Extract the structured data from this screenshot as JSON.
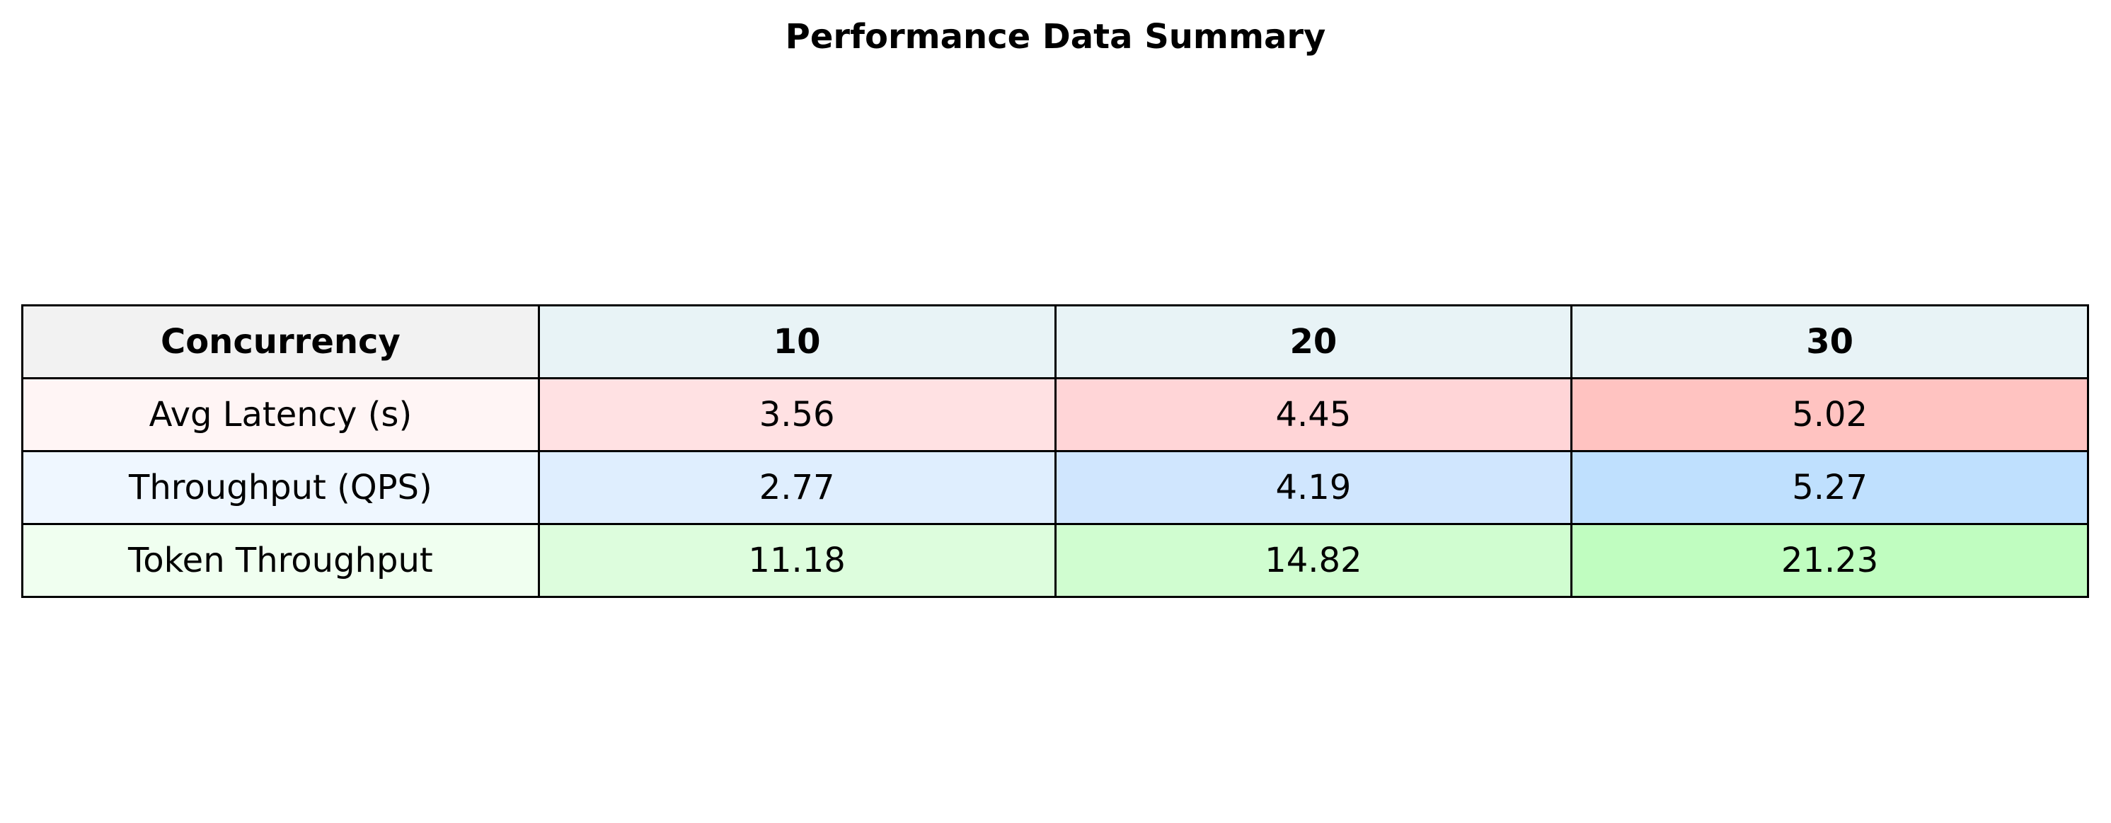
{
  "title": "Performance Data Summary",
  "table": {
    "header": [
      "Concurrency",
      "10",
      "20",
      "30"
    ],
    "rows": [
      [
        "Avg Latency (s)",
        "3.56",
        "4.45",
        "5.02"
      ],
      [
        "Throughput (QPS)",
        "2.77",
        "4.19",
        "5.27"
      ],
      [
        "Token Throughput",
        "11.18",
        "14.82",
        "21.23"
      ]
    ]
  }
}
